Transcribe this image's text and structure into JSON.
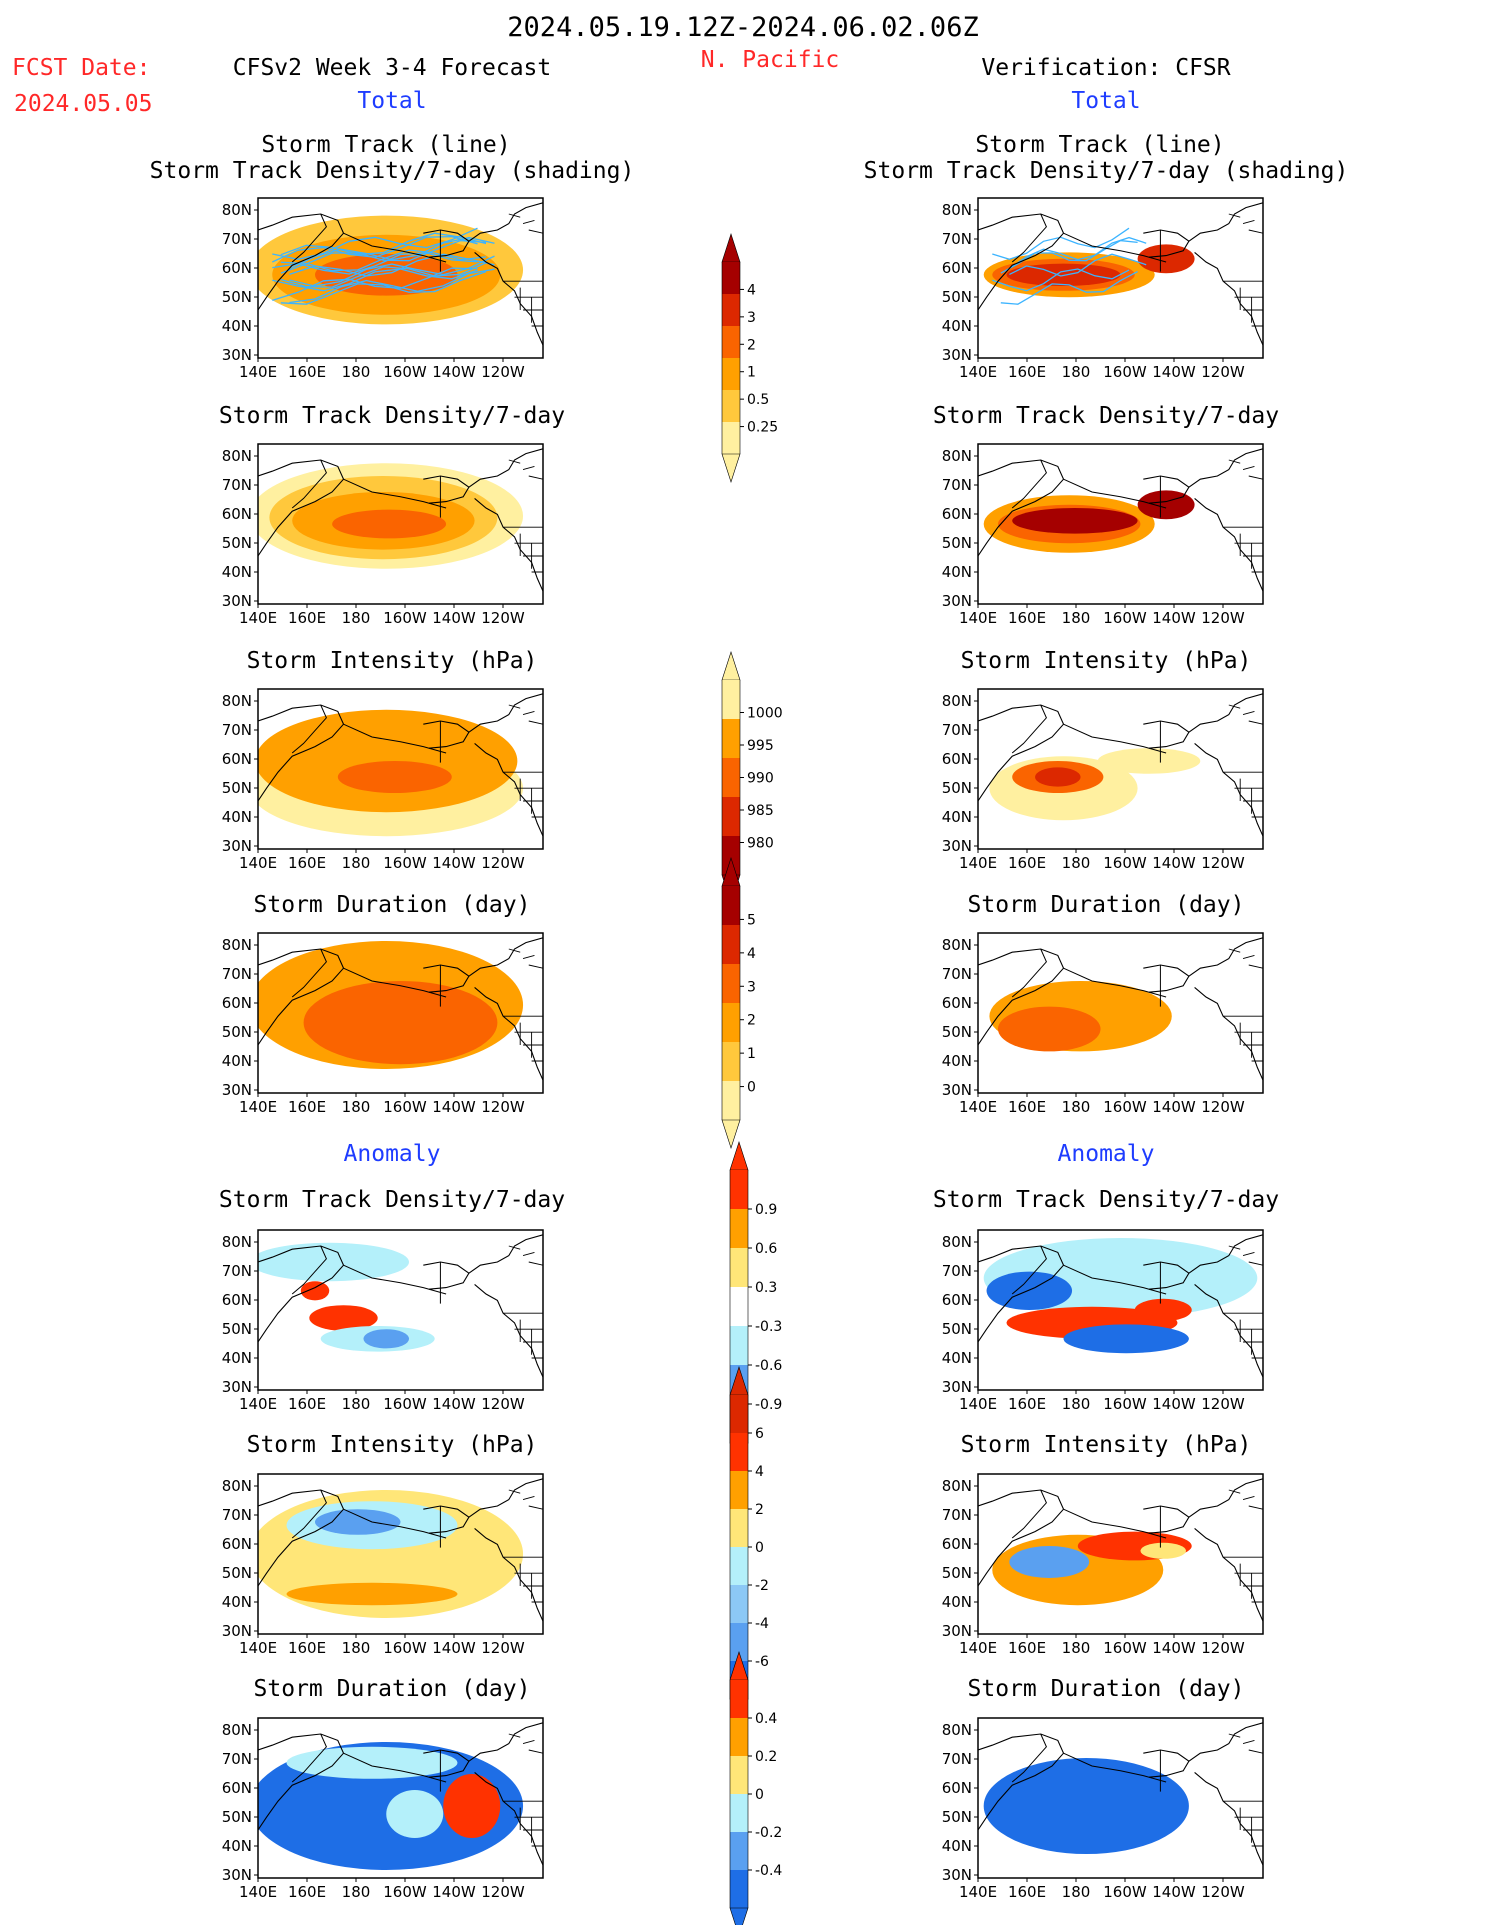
{
  "header": {
    "date_range": "2024.05.19.12Z-2024.06.02.06Z",
    "fcst_label": "FCST Date:",
    "fcst_date": "2024.05.05",
    "model_title": "CFSv2 Week 3-4 Forecast",
    "region": "N. Pacific",
    "verification_title": "Verification: CFSR"
  },
  "section_labels": {
    "total_left": "Total",
    "total_right": "Total",
    "anomaly_left": "Anomaly",
    "anomaly_right": "Anomaly"
  },
  "panel_titles": {
    "track_line": "Storm Track (line)",
    "track_shading": "Storm Track Density/7-day (shading)",
    "density": "Storm Track Density/7-day",
    "intensity": "Storm Intensity (hPa)",
    "duration": "Storm Duration (day)"
  },
  "axes": {
    "lat_ticks": [
      "80N",
      "70N",
      "60N",
      "50N",
      "40N",
      "30N"
    ],
    "lon_ticks": [
      "140E",
      "160E",
      "180",
      "160W",
      "140W",
      "120W"
    ]
  },
  "colorbars": {
    "density_total": {
      "labels": [
        "4",
        "3",
        "2",
        "1",
        "0.5",
        "0.25"
      ],
      "colors": [
        "#a50000",
        "#dc2800",
        "#fa6400",
        "#ffa000",
        "#ffc83c",
        "#fff0a0"
      ]
    },
    "intensity_total": {
      "labels": [
        "1000",
        "995",
        "990",
        "985",
        "980"
      ],
      "colors": [
        "#fff0a0",
        "#ffa000",
        "#fa6400",
        "#dc2800",
        "#a50000"
      ]
    },
    "duration_total": {
      "labels": [
        "5",
        "4",
        "3",
        "2",
        "1",
        "0"
      ],
      "colors": [
        "#a50000",
        "#dc2800",
        "#fa6400",
        "#ffa000",
        "#ffc83c",
        "#fff0a0"
      ]
    },
    "density_anom": {
      "labels": [
        "0.9",
        "0.6",
        "0.3",
        "-0.3",
        "-0.6",
        "-0.9"
      ],
      "colors": [
        "#ff3200",
        "#ffa000",
        "#ffe678",
        "#ffffff",
        "#b4f0fa",
        "#5aa0f0",
        "#1e6ee6"
      ]
    },
    "intensity_anom": {
      "labels": [
        "6",
        "4",
        "2",
        "0",
        "-2",
        "-4",
        "-6"
      ],
      "colors": [
        "#dc2800",
        "#ff3200",
        "#ffa000",
        "#ffe678",
        "#b4f0fa",
        "#8cc8f5",
        "#5aa0f0",
        "#1e6ee6"
      ]
    },
    "duration_anom": {
      "labels": [
        "0.4",
        "0.2",
        "0",
        "-0.2",
        "-0.4"
      ],
      "colors": [
        "#ff3200",
        "#ffa000",
        "#ffe678",
        "#b4f0fa",
        "#5aa0f0",
        "#1e6ee6"
      ]
    }
  },
  "colors": {
    "header_red": "#ff2828",
    "section_blue": "#1e3cff",
    "track_line": "#3cb4ff"
  }
}
